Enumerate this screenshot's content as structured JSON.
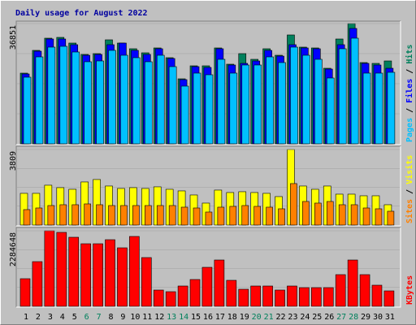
{
  "chart_data": [
    {
      "type": "bar",
      "title": "Daily usage for August 2022",
      "title_color": "#0000A0",
      "series": [
        {
          "name": "Hits",
          "color": "#00805C",
          "values": [
            21663,
            28635,
            32370,
            32619,
            30876,
            27390,
            27639,
            31872,
            30876,
            29133,
            27888,
            29382,
            26394,
            19920,
            23904,
            23904,
            29382,
            24402,
            27639,
            25896,
            29133,
            27141,
            33366,
            29631,
            29382,
            23157,
            32121,
            36851,
            24900,
            24651,
            25398
          ]
        },
        {
          "name": "Files",
          "color": "#0000FF",
          "values": [
            21414,
            28386,
            32121,
            32121,
            30378,
            27141,
            27390,
            30378,
            30876,
            28635,
            27390,
            29133,
            26145,
            19671,
            23655,
            23406,
            29133,
            24153,
            24651,
            25398,
            28635,
            26892,
            30378,
            29382,
            29133,
            22908,
            30378,
            35358,
            24651,
            24153,
            23157
          ]
        },
        {
          "name": "Pages",
          "color": "#00C0FF",
          "values": [
            20418,
            26643,
            29631,
            29880,
            28137,
            25149,
            25398,
            28635,
            27141,
            26394,
            25149,
            27141,
            23655,
            17679,
            21663,
            21165,
            25896,
            21663,
            24153,
            24153,
            26643,
            24900,
            29631,
            27141,
            25896,
            20169,
            29133,
            32370,
            21663,
            21663,
            21912
          ]
        }
      ],
      "ylim": [
        0,
        36851
      ],
      "yticks": [
        36851
      ],
      "legend_separator": " / "
    },
    {
      "type": "bar",
      "series": [
        {
          "name": "Visits",
          "color": "#FFFF00",
          "values": [
            1599,
            1599,
            2009,
            1886,
            1804,
            2173,
            2296,
            1968,
            1845,
            1886,
            1845,
            1927,
            1804,
            1722,
            1517,
            1107,
            1763,
            1640,
            1681,
            1640,
            1599,
            1435,
            3809,
            1968,
            1804,
            1968,
            1558,
            1558,
            1476,
            1476,
            1025
          ]
        },
        {
          "name": "Sites",
          "color": "#FF8000",
          "values": [
            779,
            861,
            984,
            1025,
            1025,
            1066,
            1025,
            984,
            984,
            984,
            984,
            984,
            984,
            902,
            861,
            656,
            902,
            943,
            984,
            943,
            902,
            820,
            2091,
            1189,
            1107,
            1189,
            1025,
            1025,
            861,
            820,
            697
          ]
        }
      ],
      "ylim": [
        0,
        3809
      ],
      "yticks": [
        3809
      ],
      "legend_separator": " / "
    },
    {
      "type": "bar",
      "categories": [
        "1",
        "2",
        "3",
        "4",
        "5",
        "6",
        "7",
        "8",
        "9",
        "10",
        "11",
        "12",
        "13",
        "14",
        "15",
        "16",
        "17",
        "18",
        "19",
        "20",
        "21",
        "22",
        "23",
        "24",
        "25",
        "26",
        "27",
        "28",
        "29",
        "30",
        "31"
      ],
      "category_colors": [
        "#000000",
        "#000000",
        "#000000",
        "#000000",
        "#000000",
        "#00805C",
        "#00805C",
        "#000000",
        "#000000",
        "#000000",
        "#000000",
        "#000000",
        "#00805C",
        "#00805C",
        "#000000",
        "#000000",
        "#000000",
        "#000000",
        "#000000",
        "#00805C",
        "#00805C",
        "#000000",
        "#000000",
        "#000000",
        "#000000",
        "#000000",
        "#00805C",
        "#00805C",
        "#000000",
        "#000000",
        "#000000"
      ],
      "series": [
        {
          "name": "KBytes",
          "color": "#FF0000",
          "values": [
            835244,
            1351130,
            2284648,
            2235506,
            2088110,
            1891582,
            1891582,
            2014412,
            1768752,
            2112676,
            1473960,
            491320,
            442188,
            614150,
            810678,
            1179168,
            1400262,
            786112,
            515886,
            614150,
            614150,
            491320,
            614150,
            565018,
            565018,
            565018,
            958074,
            1400262,
            958074,
            638716,
            466754
          ]
        }
      ],
      "ylim": [
        0,
        2284648
      ],
      "yticks": [
        2284648
      ]
    }
  ]
}
